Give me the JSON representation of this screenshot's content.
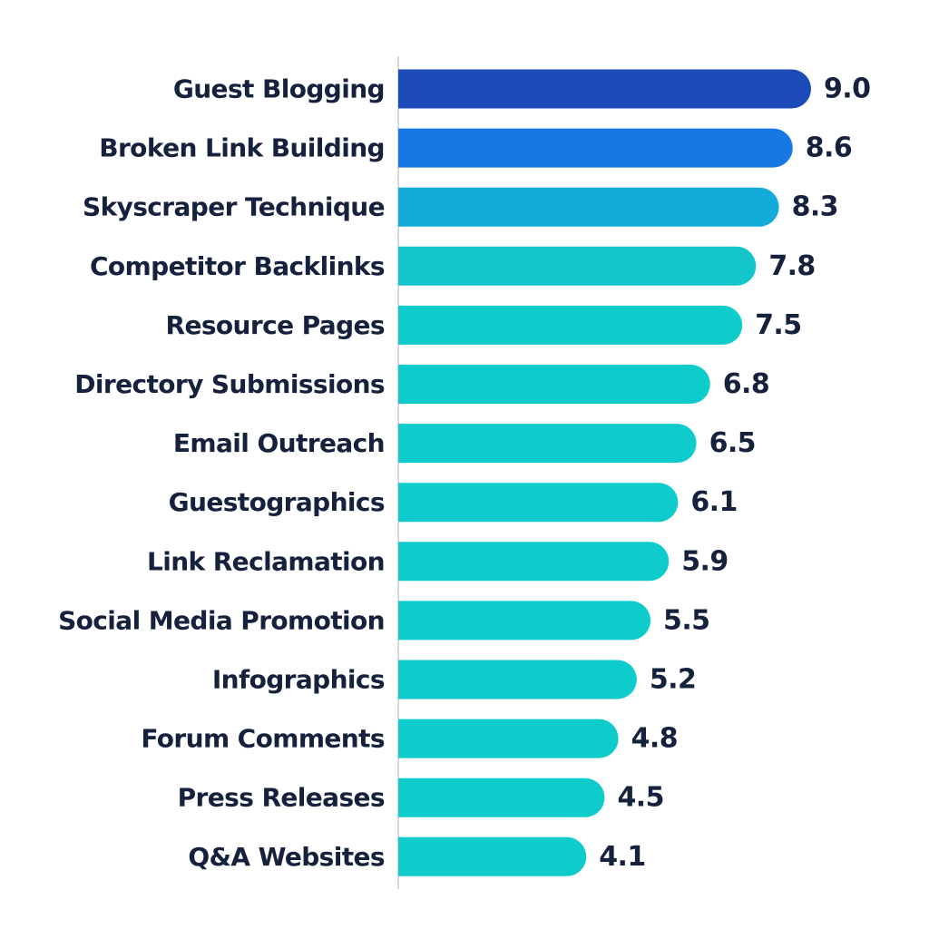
{
  "colors": {
    "label_text": "#16213e",
    "axis_line": "#d4d8e0",
    "background": "#ffffff",
    "bar_palette": [
      "#1a4bb8",
      "#1777e3",
      "#13acd9",
      "#14c6cc",
      "#0fcccc"
    ]
  },
  "chart_data": {
    "type": "bar",
    "orientation": "horizontal",
    "title": "",
    "xlabel": "",
    "ylabel": "",
    "xlim": [
      0,
      9.0
    ],
    "grid": false,
    "legend": "none",
    "categories": [
      "Guest Blogging",
      "Broken Link Building",
      "Skyscraper Technique",
      "Competitor Backlinks",
      "Resource Pages",
      "Directory Submissions",
      "Email Outreach",
      "Guestographics",
      "Link Reclamation",
      "Social Media Promotion",
      "Infographics",
      "Forum Comments",
      "Press Releases",
      "Q&A Websites"
    ],
    "values": [
      9.0,
      8.6,
      8.3,
      7.8,
      7.5,
      6.8,
      6.5,
      6.1,
      5.9,
      5.5,
      5.2,
      4.8,
      4.5,
      4.1
    ],
    "value_labels": [
      "9.0",
      "8.6",
      "8.3",
      "7.8",
      "7.5",
      "6.8",
      "6.5",
      "6.1",
      "5.9",
      "5.5",
      "5.2",
      "4.8",
      "4.5",
      "4.1"
    ],
    "bar_colors": [
      "#1a4bb8",
      "#1777e3",
      "#13acd9",
      "#14c6cc",
      "#0fcccc",
      "#0fcccc",
      "#0fcccc",
      "#0fcccc",
      "#0fcccc",
      "#0fcccc",
      "#0fcccc",
      "#0fcccc",
      "#0fcccc",
      "#0fcccc"
    ]
  }
}
